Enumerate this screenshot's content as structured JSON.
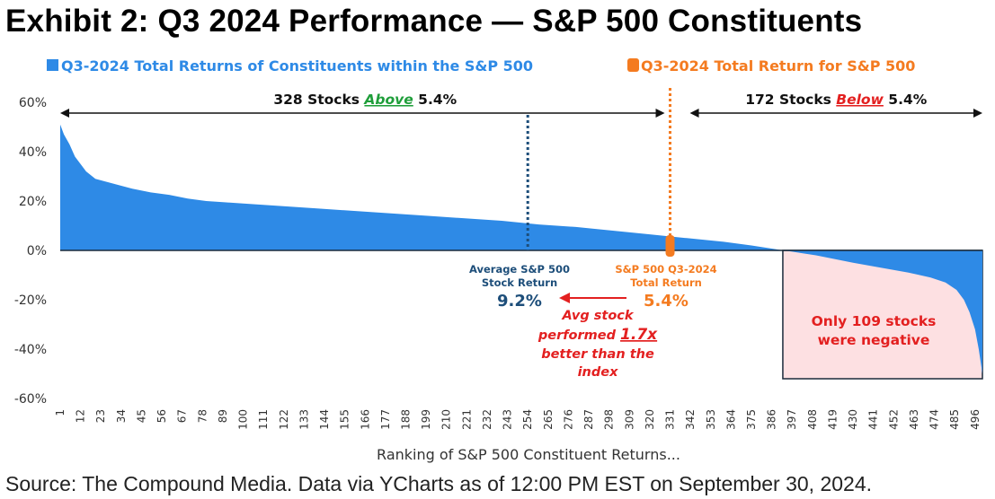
{
  "title": "Exhibit 2: Q3 2024 Performance — S&P 500 Constituents",
  "source": "Source: The Compound Media. Data via YCharts as of 12:00 PM EST on September 30, 2024.",
  "colors": {
    "bars": "#2e8ae6",
    "index": "#f47b20",
    "average": "#1d4e7a",
    "negative_box": "#fde0e2",
    "red": "#e32020",
    "green": "#1f9e3a"
  },
  "chart_data": {
    "type": "area",
    "title": "",
    "xlabel": "Ranking of S&P 500 Constituent Returns...",
    "ylabel": "",
    "ylim": [
      -60,
      60
    ],
    "y_ticks": [
      60,
      40,
      20,
      0,
      -20,
      -40,
      -60
    ],
    "y_tick_labels": [
      "60%",
      "40%",
      "20%",
      "0%",
      "-20%",
      "-40%",
      "-60%"
    ],
    "x_ticks": [
      1,
      12,
      23,
      34,
      45,
      56,
      67,
      78,
      89,
      100,
      111,
      122,
      133,
      144,
      155,
      166,
      177,
      188,
      199,
      210,
      221,
      232,
      243,
      254,
      265,
      276,
      287,
      298,
      309,
      320,
      331,
      342,
      353,
      364,
      375,
      386,
      397,
      408,
      419,
      430,
      441,
      452,
      463,
      474,
      485,
      496
    ],
    "x_range": [
      1,
      500
    ],
    "series": [
      {
        "name": "Q3-2024 Total Returns of Constituents within the S&P 500",
        "curve": [
          [
            1,
            51
          ],
          [
            3,
            47
          ],
          [
            6,
            43
          ],
          [
            9,
            38
          ],
          [
            12,
            35
          ],
          [
            15,
            32
          ],
          [
            20,
            29
          ],
          [
            25,
            28
          ],
          [
            30,
            27
          ],
          [
            40,
            25
          ],
          [
            50,
            23.5
          ],
          [
            60,
            22.5
          ],
          [
            70,
            21
          ],
          [
            80,
            20
          ],
          [
            90,
            19.5
          ],
          [
            100,
            19
          ],
          [
            120,
            18
          ],
          [
            140,
            17
          ],
          [
            160,
            16
          ],
          [
            180,
            15
          ],
          [
            200,
            14
          ],
          [
            220,
            13
          ],
          [
            240,
            12
          ],
          [
            260,
            10.5
          ],
          [
            280,
            9.5
          ],
          [
            300,
            8
          ],
          [
            320,
            6.5
          ],
          [
            340,
            5
          ],
          [
            360,
            3.5
          ],
          [
            375,
            2
          ],
          [
            390,
            0.3
          ],
          [
            397,
            -0.5
          ],
          [
            410,
            -2
          ],
          [
            430,
            -5
          ],
          [
            445,
            -7
          ],
          [
            460,
            -9
          ],
          [
            472,
            -11
          ],
          [
            480,
            -13
          ],
          [
            486,
            -16
          ],
          [
            490,
            -20
          ],
          [
            493,
            -25
          ],
          [
            496,
            -32
          ],
          [
            498,
            -40
          ],
          [
            500,
            -50
          ]
        ]
      },
      {
        "name": "Q3-2024 Total Return for S&P 500",
        "value": 5.4,
        "rank": 331
      }
    ],
    "legend": {
      "placement": "top",
      "items": [
        "Q3-2024 Total Returns of Constituents within the S&P 500",
        "Q3-2024 Total Return for S&P 500"
      ]
    },
    "annotations": {
      "above": {
        "prefix": "328 Stocks ",
        "word": "Above",
        "suffix": " 5.4%"
      },
      "below": {
        "prefix": "172 Stocks ",
        "word": "Below",
        "suffix": " 5.4%"
      },
      "average": {
        "line1": "Average S&P 500",
        "line2": "Stock Return",
        "value": "9.2%",
        "rank": 254
      },
      "index": {
        "line1": "S&P 500 Q3-2024",
        "line2": "Total Return",
        "value": "5.4%",
        "rank": 331
      },
      "comparison": {
        "line1": "Avg stock",
        "line2_prefix": "performed ",
        "line2_value": "1.7x",
        "line3": "better than the",
        "line4": "index"
      },
      "negative": {
        "line1": "Only 109 stocks",
        "line2": "were negative",
        "from_rank": 392
      }
    }
  }
}
